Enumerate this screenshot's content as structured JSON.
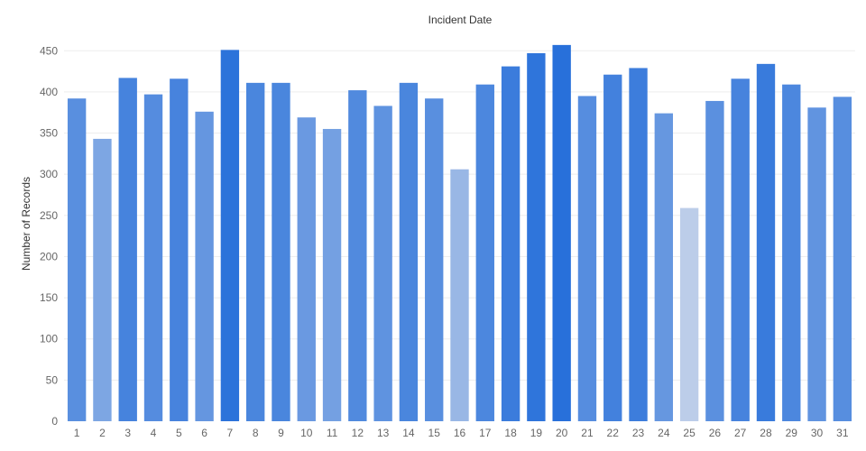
{
  "chart_data": {
    "type": "bar",
    "title": "Incident Date",
    "xlabel": "",
    "ylabel": "Number of Records",
    "categories": [
      "1",
      "2",
      "3",
      "4",
      "5",
      "6",
      "7",
      "8",
      "9",
      "10",
      "11",
      "12",
      "13",
      "14",
      "15",
      "16",
      "17",
      "18",
      "19",
      "20",
      "21",
      "22",
      "23",
      "24",
      "25",
      "26",
      "27",
      "28",
      "29",
      "30",
      "31"
    ],
    "values": [
      392,
      343,
      417,
      397,
      416,
      376,
      451,
      411,
      411,
      369,
      355,
      402,
      383,
      411,
      392,
      306,
      409,
      431,
      447,
      457,
      395,
      421,
      429,
      374,
      259,
      389,
      416,
      434,
      409,
      381,
      394
    ],
    "ylim": [
      0,
      470
    ],
    "yticks": [
      0,
      50,
      100,
      150,
      200,
      250,
      300,
      350,
      400,
      450
    ],
    "grid": true,
    "color_scale": {
      "low": "#bccde9",
      "high": "#2870da"
    }
  }
}
